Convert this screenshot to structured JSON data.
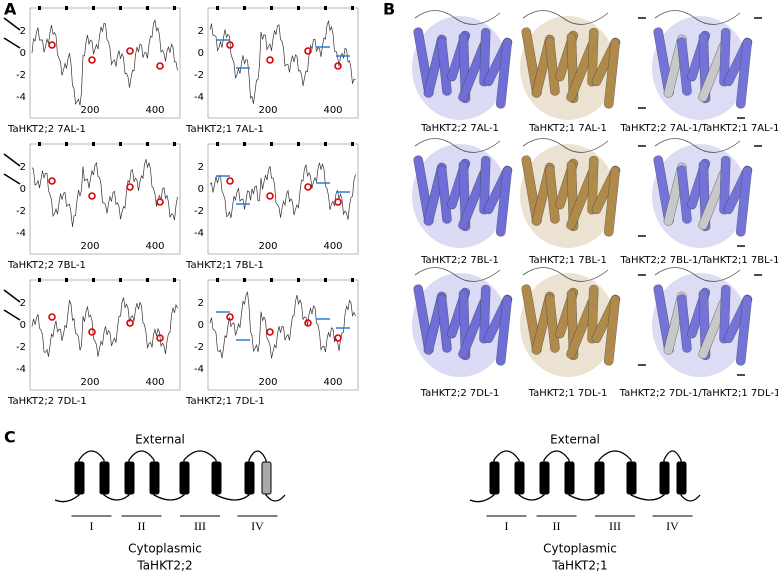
{
  "panel_a": {
    "label": "A",
    "plots": [
      {
        "caption": "TaHKT2;2 7AL-1",
        "yticks": [
          2,
          0,
          -2,
          -4
        ],
        "xticks": [
          200,
          400
        ]
      },
      {
        "caption": "TaHKT2;1 7AL-1",
        "yticks": [
          2,
          0,
          -2,
          -4
        ],
        "xticks": [
          200,
          400
        ]
      },
      {
        "caption": "TaHKT2;2 7BL-1",
        "yticks": [
          2,
          0,
          -2,
          -4
        ],
        "xticks": [
          200,
          400
        ]
      },
      {
        "caption": "TaHKT2;1 7BL-1",
        "yticks": [
          2,
          0,
          -2,
          -4
        ],
        "xticks": [
          200,
          400
        ]
      },
      {
        "caption": "TaHKT2;2 7DL-1",
        "yticks": [
          2,
          0,
          -2,
          -4
        ],
        "xticks": [
          200,
          400
        ]
      },
      {
        "caption": "TaHKT2;1 7DL-1",
        "yticks": [
          2,
          0,
          -2,
          -4
        ],
        "xticks": [
          200,
          400
        ]
      }
    ]
  },
  "panel_b": {
    "label": "B",
    "structures": [
      "TaHKT2;2 7AL-1",
      "TaHKT2;1 7AL-1",
      "TaHKT2;2 7AL-1/TaHKT2;1 7AL-1",
      "TaHKT2;2 7BL-1",
      "TaHKT2;1 7BL-1",
      "TaHKT2;2 7BL-1/TaHKT2;1 7BL-1",
      "TaHKT2;2 7DL-1",
      "TaHKT2;1 7DL-1",
      "TaHKT2;2 7DL-1/TaHKT2;1 7DL-1"
    ]
  },
  "panel_c": {
    "label": "C",
    "diagrams": [
      {
        "top": "External",
        "domains": [
          "I",
          "II",
          "III",
          "IV"
        ],
        "bottom": "Cytoplasmic",
        "name": "TaHKT2;2"
      },
      {
        "top": "External",
        "domains": [
          "I",
          "II",
          "III",
          "IV"
        ],
        "bottom": "Cytoplasmic",
        "name": "TaHKT2;1"
      }
    ]
  }
}
